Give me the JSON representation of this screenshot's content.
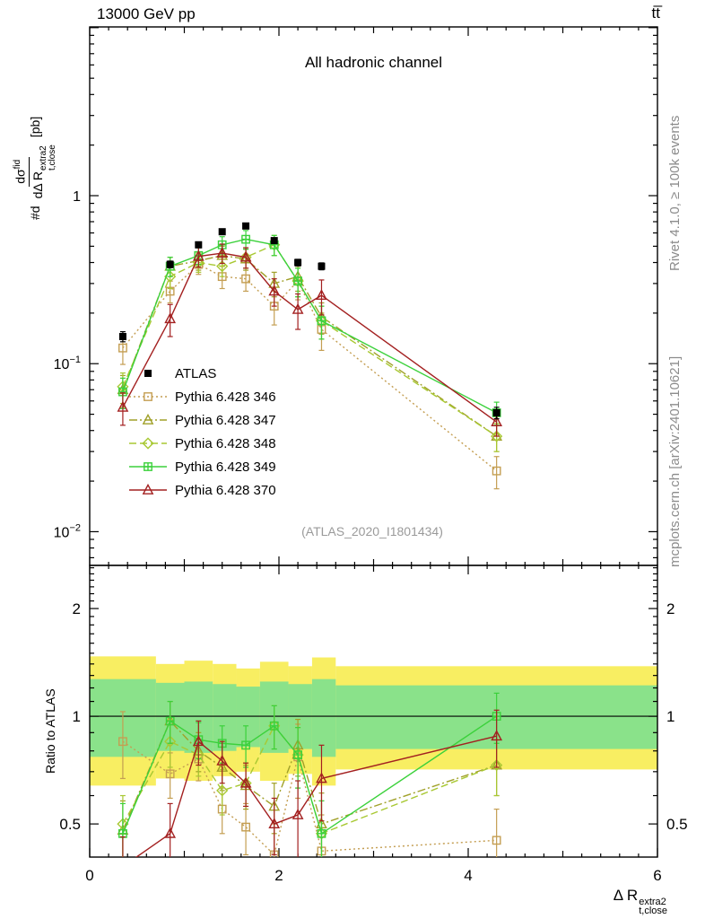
{
  "header": {
    "left": "13000 GeV pp",
    "right": "tt̅"
  },
  "panel_title": "All hadronic channel",
  "watermark": "(ATLAS_2020_I1801434)",
  "side_labels": {
    "rivet": "Rivet 4.1.0, ≥ 100k events",
    "mcplots": "mcplots.cern.ch [arXiv:2401.10621]"
  },
  "axes": {
    "y_prefix": "#d",
    "y_num": "dσ",
    "y_num_sup": "fid",
    "y_den": "dΔ R",
    "y_den_sup": "extra2",
    "y_den_sub": "t,close",
    "y_units": "[pb]",
    "ratio_label": "Ratio to ATLAS",
    "x_title": "Δ R",
    "x_sup": "extra2",
    "x_sub": "t,close"
  },
  "chart_data": {
    "type": "line",
    "title": "All hadronic channel",
    "xlabel": "Delta R_{t,close}^{extra2}",
    "ylabel": "#d dsigma^{fid}/dDelta R_{t,close}^{extra2} [pb]",
    "ylabel_ratio": "Ratio to ATLAS",
    "x_axis_scale": "linear",
    "y_axis_scale": "log",
    "xlim": [
      0,
      6
    ],
    "ylim_main": [
      0.0063,
      10.1
    ],
    "ylim_ratio": [
      0.404,
      2.64
    ],
    "x_ticks_labeled": [
      0,
      2,
      4,
      6
    ],
    "y_ticks_main": [
      1,
      0.1,
      0.01
    ],
    "y_ticks_ratio": [
      0.5,
      1,
      2
    ],
    "ratio_reference": 1,
    "x": [
      0.35,
      0.85,
      1.15,
      1.4,
      1.65,
      1.95,
      2.2,
      2.45,
      4.3
    ],
    "series": [
      {
        "name": "ATLAS",
        "color": "#000000",
        "marker": "square-filled",
        "line": "none",
        "y": [
          0.145,
          0.39,
          0.51,
          0.61,
          0.66,
          0.54,
          0.4,
          0.38,
          0.051
        ],
        "yerr": [
          0.01,
          0.018,
          0.02,
          0.022,
          0.024,
          0.02,
          0.018,
          0.018,
          0.004
        ]
      },
      {
        "name": "Pythia 6.428 346",
        "color": "#C49E52",
        "marker": "square-open",
        "line": "dotted",
        "y": [
          0.124,
          0.27,
          0.39,
          0.33,
          0.32,
          0.22,
          0.31,
          0.16,
          0.023
        ],
        "yerr": [
          0.025,
          0.04,
          0.05,
          0.05,
          0.05,
          0.05,
          0.07,
          0.04,
          0.005
        ],
        "ratio": [
          0.85,
          0.69,
          0.76,
          0.55,
          0.49,
          0.41,
          0.77,
          0.42,
          0.45
        ],
        "ratio_err": [
          0.18,
          0.1,
          0.1,
          0.08,
          0.08,
          0.09,
          0.18,
          0.11,
          0.1
        ]
      },
      {
        "name": "Pythia 6.428 347",
        "color": "#A0A028",
        "marker": "triangle-open",
        "line": "dashdot",
        "y": [
          0.07,
          0.38,
          0.41,
          0.44,
          0.42,
          0.3,
          0.33,
          0.19,
          0.037
        ],
        "yerr": [
          0.015,
          0.05,
          0.05,
          0.06,
          0.06,
          0.05,
          0.06,
          0.04,
          0.007
        ],
        "ratio": [
          0.48,
          0.97,
          0.8,
          0.72,
          0.64,
          0.56,
          0.83,
          0.5,
          0.73
        ],
        "ratio_err": [
          0.1,
          0.13,
          0.1,
          0.1,
          0.09,
          0.09,
          0.15,
          0.11,
          0.13
        ]
      },
      {
        "name": "Pythia 6.428 348",
        "color": "#A8C832",
        "marker": "diamond-open",
        "line": "dashed",
        "y": [
          0.073,
          0.33,
          0.4,
          0.38,
          0.43,
          0.51,
          0.31,
          0.18,
          0.037
        ],
        "yerr": [
          0.015,
          0.05,
          0.05,
          0.05,
          0.06,
          0.07,
          0.06,
          0.04,
          0.007
        ],
        "ratio": [
          0.5,
          0.85,
          0.78,
          0.62,
          0.65,
          0.94,
          0.78,
          0.47,
          0.73
        ],
        "ratio_err": [
          0.1,
          0.13,
          0.1,
          0.09,
          0.09,
          0.13,
          0.15,
          0.11,
          0.13
        ]
      },
      {
        "name": "Pythia 6.428 349",
        "color": "#3BD13B",
        "marker": "squareplus-open",
        "line": "solid",
        "y": [
          0.068,
          0.38,
          0.44,
          0.51,
          0.55,
          0.51,
          0.31,
          0.18,
          0.051
        ],
        "yerr": [
          0.014,
          0.05,
          0.05,
          0.06,
          0.07,
          0.07,
          0.06,
          0.04,
          0.008
        ],
        "ratio": [
          0.47,
          0.97,
          0.86,
          0.84,
          0.83,
          0.94,
          0.78,
          0.47,
          1.0
        ],
        "ratio_err": [
          0.1,
          0.13,
          0.1,
          0.1,
          0.11,
          0.13,
          0.15,
          0.11,
          0.16
        ]
      },
      {
        "name": "Pythia 6.428 370",
        "color": "#A32020",
        "marker": "triangle-open",
        "line": "solid",
        "y": [
          0.055,
          0.185,
          0.435,
          0.455,
          0.43,
          0.27,
          0.21,
          0.255,
          0.045
        ],
        "yerr": [
          0.012,
          0.04,
          0.06,
          0.06,
          0.06,
          0.05,
          0.05,
          0.06,
          0.008
        ],
        "ratio": [
          0.38,
          0.47,
          0.85,
          0.75,
          0.65,
          0.5,
          0.53,
          0.67,
          0.88
        ],
        "ratio_err": [
          0.08,
          0.1,
          0.12,
          0.1,
          0.09,
          0.09,
          0.13,
          0.16,
          0.16
        ]
      }
    ],
    "bands": {
      "edges": [
        0,
        0.7,
        1.0,
        1.3,
        1.55,
        1.8,
        2.1,
        2.35,
        2.6,
        6.0
      ],
      "yellow": {
        "color": "#F8EE62",
        "lo": [
          0.64,
          0.67,
          0.66,
          0.68,
          0.7,
          0.66,
          0.69,
          0.64,
          0.71
        ],
        "hi": [
          1.47,
          1.4,
          1.43,
          1.4,
          1.36,
          1.42,
          1.38,
          1.46,
          1.38
        ]
      },
      "green": {
        "color": "#8AE28A",
        "lo": [
          0.77,
          0.8,
          0.79,
          0.8,
          0.82,
          0.79,
          0.81,
          0.77,
          0.81
        ],
        "hi": [
          1.27,
          1.24,
          1.25,
          1.23,
          1.21,
          1.25,
          1.23,
          1.27,
          1.22
        ]
      }
    }
  }
}
